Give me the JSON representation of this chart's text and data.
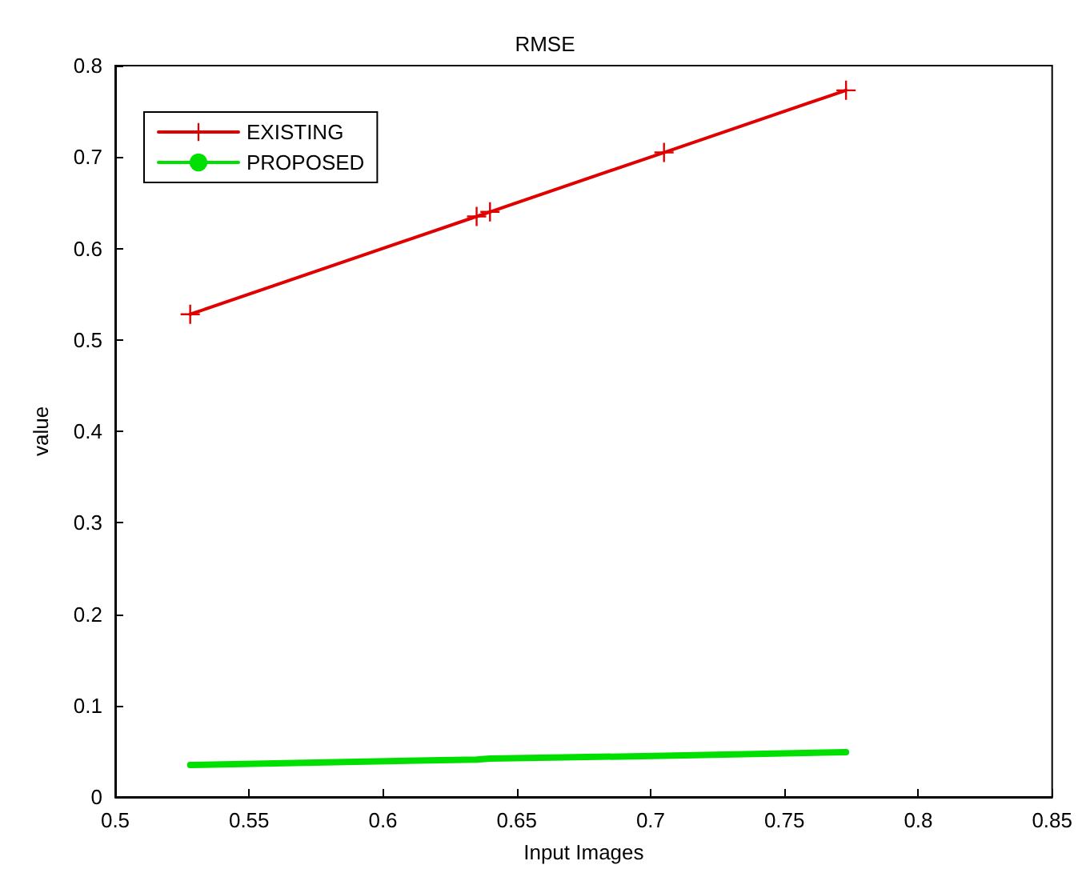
{
  "chart_data": {
    "type": "line",
    "title": "RMSE",
    "xlabel": "Input Images",
    "ylabel": "value",
    "xlim": [
      0.5,
      0.85
    ],
    "xticks": [
      0.5,
      0.55,
      0.6,
      0.65,
      0.7,
      0.75,
      0.8,
      0.85
    ],
    "ylim": [
      0,
      0.8
    ],
    "yticks": [
      0,
      0.1,
      0.2,
      0.3,
      0.4,
      0.5,
      0.6,
      0.7,
      0.8
    ],
    "x": [
      0.528,
      0.635,
      0.64,
      0.705,
      0.773
    ],
    "series": [
      {
        "name": "EXISTING",
        "color": "#e00000",
        "marker": "cross",
        "values": [
          0.528,
          0.635,
          0.64,
          0.705,
          0.773
        ]
      },
      {
        "name": "PROPOSED",
        "color": "#00e000",
        "marker": "none",
        "values": [
          0.035,
          0.041,
          0.042,
          0.045,
          0.049
        ]
      }
    ],
    "legend": "top left",
    "grid": false,
    "line_style": "solid"
  }
}
